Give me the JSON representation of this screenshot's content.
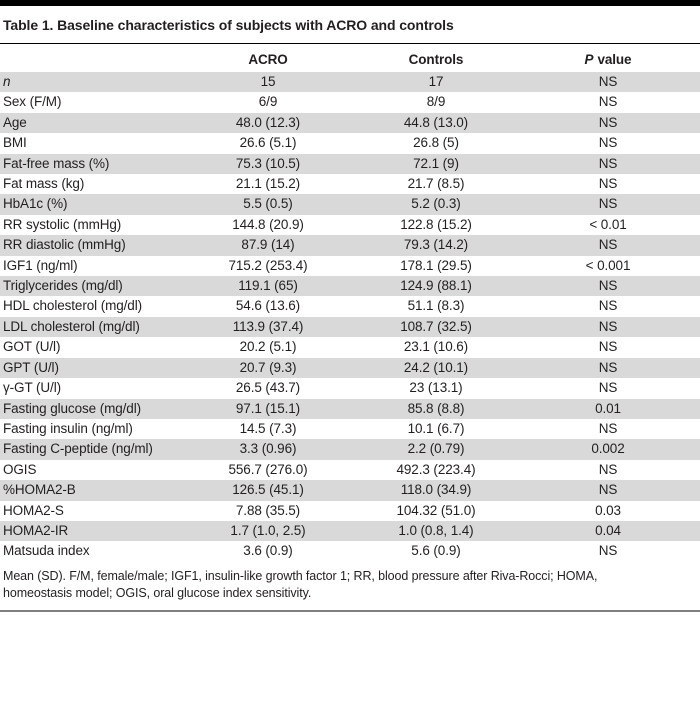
{
  "table": {
    "title": "Table 1. Baseline characteristics of subjects with ACRO and controls",
    "header": {
      "acro": "ACRO",
      "controls": "Controls",
      "p_symbol": "P",
      "p_rest": "value"
    },
    "rows": [
      {
        "label": "n",
        "italic": true,
        "acro": "15",
        "controls": "17",
        "p": "NS"
      },
      {
        "label": "Sex (F/M)",
        "acro": "6/9",
        "controls": "8/9",
        "p": "NS"
      },
      {
        "label": "Age",
        "acro": "48.0 (12.3)",
        "controls": "44.8 (13.0)",
        "p": "NS"
      },
      {
        "label": "BMI",
        "acro": "26.6 (5.1)",
        "controls": "26.8 (5)",
        "p": "NS"
      },
      {
        "label": "Fat-free mass (%)",
        "acro": "75.3 (10.5)",
        "controls": "72.1 (9)",
        "p": "NS"
      },
      {
        "label": "Fat mass (kg)",
        "acro": "21.1 (15.2)",
        "controls": "21.7 (8.5)",
        "p": "NS"
      },
      {
        "label": "HbA1c (%)",
        "acro": "5.5 (0.5)",
        "controls": "5.2 (0.3)",
        "p": "NS"
      },
      {
        "label": "RR systolic (mmHg)",
        "acro": "144.8 (20.9)",
        "controls": "122.8 (15.2)",
        "p": "< 0.01"
      },
      {
        "label": "RR diastolic (mmHg)",
        "acro": "87.9 (14)",
        "controls": "79.3 (14.2)",
        "p": "NS"
      },
      {
        "label": "IGF1 (ng/ml)",
        "acro": "715.2 (253.4)",
        "controls": "178.1 (29.5)",
        "p": "< 0.001"
      },
      {
        "label": "Triglycerides (mg/dl)",
        "acro": "119.1 (65)",
        "controls": "124.9 (88.1)",
        "p": "NS"
      },
      {
        "label": "HDL cholesterol (mg/dl)",
        "acro": "54.6 (13.6)",
        "controls": "51.1 (8.3)",
        "p": "NS"
      },
      {
        "label": "LDL cholesterol (mg/dl)",
        "acro": "113.9 (37.4)",
        "controls": "108.7 (32.5)",
        "p": "NS"
      },
      {
        "label": "GOT (U/l)",
        "acro": "20.2 (5.1)",
        "controls": "23.1 (10.6)",
        "p": "NS"
      },
      {
        "label": "GPT (U/l)",
        "acro": "20.7 (9.3)",
        "controls": "24.2 (10.1)",
        "p": "NS"
      },
      {
        "label": "γ-GT (U/l)",
        "acro": "26.5 (43.7)",
        "controls": "23 (13.1)",
        "p": "NS"
      },
      {
        "label": "Fasting glucose (mg/dl)",
        "acro": "97.1 (15.1)",
        "controls": "85.8 (8.8)",
        "p": "0.01"
      },
      {
        "label": "Fasting insulin (ng/ml)",
        "acro": "14.5 (7.3)",
        "controls": "10.1 (6.7)",
        "p": "NS"
      },
      {
        "label": "Fasting C-peptide (ng/ml)",
        "acro": "3.3 (0.96)",
        "controls": "2.2 (0.79)",
        "p": "0.002"
      },
      {
        "label": "OGIS",
        "acro": "556.7 (276.0)",
        "controls": "492.3 (223.4)",
        "p": "NS"
      },
      {
        "label": "%HOMA2-B",
        "acro": "126.5 (45.1)",
        "controls": "118.0 (34.9)",
        "p": "NS"
      },
      {
        "label": "HOMA2-S",
        "acro": "7.88 (35.5)",
        "controls": "104.32 (51.0)",
        "p": "0.03"
      },
      {
        "label": "HOMA2-IR",
        "acro": "1.7 (1.0, 2.5)",
        "controls": "1.0 (0.8, 1.4)",
        "p": "0.04"
      },
      {
        "label": "Matsuda index",
        "acro": "3.6 (0.9)",
        "controls": "5.6 (0.9)",
        "p": "NS"
      }
    ],
    "footnote": {
      "line1": "Mean (SD). F/M, female/male; IGF1, insulin-like growth factor 1; RR, blood pressure after Riva-Rocci; HOMA,",
      "line2": "homeostasis model; OGIS, oral glucose index sensitivity."
    }
  }
}
